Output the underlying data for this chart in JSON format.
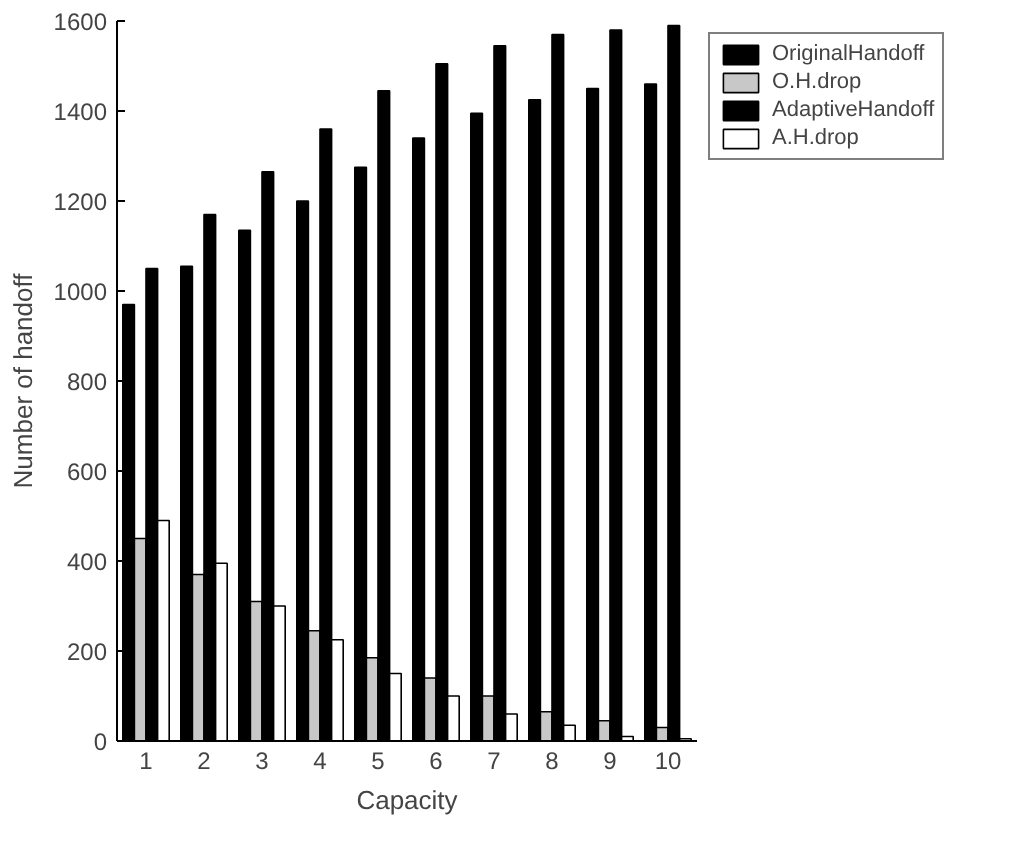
{
  "chart_data": {
    "type": "bar",
    "xlabel": "Capacity",
    "ylabel": "Number of handoff",
    "categories": [
      "1",
      "2",
      "3",
      "4",
      "5",
      "6",
      "7",
      "8",
      "9",
      "10"
    ],
    "ylim": [
      0,
      1600
    ],
    "yticks": [
      0,
      200,
      400,
      600,
      800,
      1000,
      1200,
      1400,
      1600
    ],
    "grid": false,
    "legend": "right",
    "series": [
      {
        "name": "OriginalHandoff",
        "color": "#000000",
        "values": [
          970,
          1055,
          1135,
          1200,
          1275,
          1340,
          1395,
          1425,
          1450,
          1460
        ]
      },
      {
        "name": "O.H.drop",
        "color": "#c8c8c8",
        "values": [
          450,
          370,
          310,
          245,
          185,
          140,
          100,
          65,
          45,
          30
        ]
      },
      {
        "name": "AdaptiveHandoff",
        "color": "#000000",
        "values": [
          1050,
          1170,
          1265,
          1360,
          1445,
          1505,
          1545,
          1570,
          1580,
          1590
        ]
      },
      {
        "name": "A.H.drop",
        "color": "#ffffff",
        "values": [
          490,
          395,
          300,
          225,
          150,
          100,
          60,
          35,
          10,
          5
        ]
      }
    ]
  }
}
